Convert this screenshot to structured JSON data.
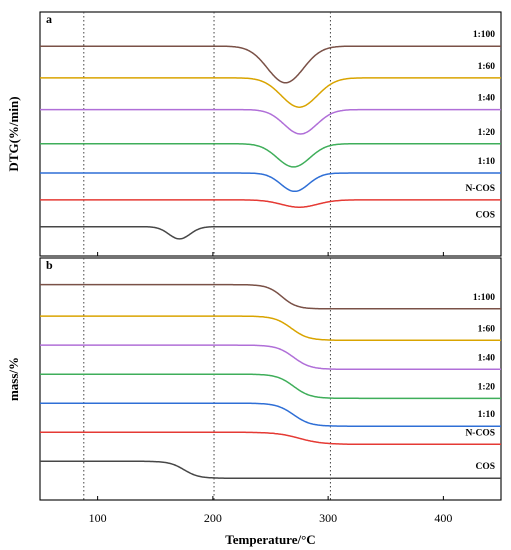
{
  "chart_data": [
    {
      "type": "line",
      "panel": "a",
      "ylabel": "DTG(%/min)",
      "xlabel": "",
      "xlim": [
        50,
        450
      ],
      "xticks": [
        100,
        200,
        300,
        400
      ],
      "reference_lines_x": [
        88,
        201,
        302
      ],
      "y_ticks_shown": false,
      "series": [
        {
          "name": "1:100",
          "color": "#7a5147",
          "baseline": 8.6,
          "drop": 1.5,
          "center": 263,
          "width": 22
        },
        {
          "name": "1:60",
          "color": "#d9a400",
          "baseline": 7.3,
          "drop": 1.2,
          "center": 275,
          "width": 22
        },
        {
          "name": "1:40",
          "color": "#b06fd8",
          "baseline": 6.0,
          "drop": 1.0,
          "center": 276,
          "width": 20
        },
        {
          "name": "1:20",
          "color": "#3fae5a",
          "baseline": 4.6,
          "drop": 0.95,
          "center": 270,
          "width": 20
        },
        {
          "name": "1:10",
          "color": "#2f6fd6",
          "baseline": 3.4,
          "drop": 0.75,
          "center": 271,
          "width": 17
        },
        {
          "name": "N-COS",
          "color": "#e53a34",
          "baseline": 2.3,
          "drop": 0.3,
          "center": 275,
          "width": 22
        },
        {
          "name": "COS",
          "color": "#474747",
          "baseline": 1.2,
          "drop": 0.5,
          "center": 171,
          "width": 13
        }
      ]
    },
    {
      "type": "line",
      "panel": "b",
      "ylabel": "mass/%",
      "xlabel": "Temperature/°C",
      "xlim": [
        50,
        450
      ],
      "xticks": [
        100,
        200,
        300,
        400
      ],
      "reference_lines_x": [
        88,
        201,
        302
      ],
      "y_ticks_shown": false,
      "series": [
        {
          "name": "1:100",
          "color": "#7a5147",
          "start": 8.9,
          "end": 7.9,
          "center": 260,
          "width": 14
        },
        {
          "name": "1:60",
          "color": "#d9a400",
          "start": 7.6,
          "end": 6.6,
          "center": 268,
          "width": 16
        },
        {
          "name": "1:40",
          "color": "#b06fd8",
          "start": 6.4,
          "end": 5.4,
          "center": 270,
          "width": 16
        },
        {
          "name": "1:20",
          "color": "#3fae5a",
          "start": 5.2,
          "end": 4.2,
          "center": 270,
          "width": 16
        },
        {
          "name": "1:10",
          "color": "#2f6fd6",
          "start": 4.0,
          "end": 3.05,
          "center": 270,
          "width": 16
        },
        {
          "name": "N-COS",
          "color": "#e53a34",
          "start": 2.8,
          "end": 2.3,
          "center": 275,
          "width": 22
        },
        {
          "name": "COS",
          "color": "#474747",
          "start": 1.6,
          "end": 0.9,
          "center": 175,
          "width": 14
        }
      ]
    }
  ]
}
